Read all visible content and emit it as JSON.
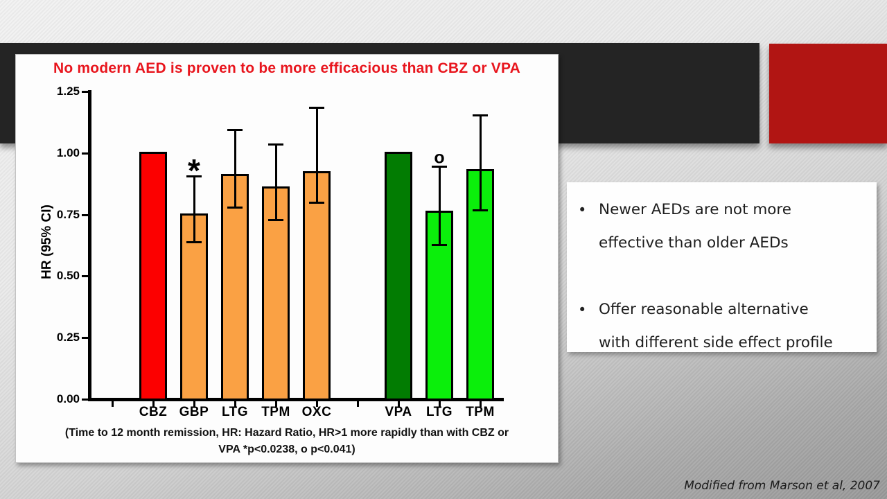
{
  "slide": {
    "accent_colors": {
      "dark_bar": "#242424",
      "red_block": "#b11513",
      "title_red": "#e8151d"
    }
  },
  "chart": {
    "title": "No modern AED is proven to be more efficacious than CBZ or VPA",
    "ylabel": "HR (95% CI)",
    "footnote_lines": [
      "(Time to 12 month remission, HR: Hazard Ratio, HR>1 more rapidly than with CBZ or",
      "VPA  *p<0.0238, o p<0.041)"
    ]
  },
  "chart_data": {
    "type": "bar",
    "title": "No modern AED is proven to be more efficacious than CBZ or VPA",
    "ylabel": "HR (95% CI)",
    "xlabel": "",
    "ylim": [
      0,
      1.25
    ],
    "yticks": [
      0.0,
      0.25,
      0.5,
      0.75,
      1.0,
      1.25
    ],
    "grid": false,
    "legend": false,
    "error_bars": "95% CI",
    "bars": [
      {
        "label": "CBZ",
        "value": 1.0,
        "ci_low": null,
        "ci_high": null,
        "color": "#fc0000",
        "group": "older-reference",
        "annotation": ""
      },
      {
        "label": "GBP",
        "value": 0.75,
        "ci_low": 0.63,
        "ci_high": 0.9,
        "color": "#faa144",
        "group": "newer-vs-CBZ",
        "annotation": "*"
      },
      {
        "label": "LTG",
        "value": 0.91,
        "ci_low": 0.77,
        "ci_high": 1.09,
        "color": "#faa144",
        "group": "newer-vs-CBZ",
        "annotation": ""
      },
      {
        "label": "TPM",
        "value": 0.86,
        "ci_low": 0.72,
        "ci_high": 1.03,
        "color": "#faa144",
        "group": "newer-vs-CBZ",
        "annotation": ""
      },
      {
        "label": "OXC",
        "value": 0.92,
        "ci_low": 0.79,
        "ci_high": 1.18,
        "color": "#faa144",
        "group": "newer-vs-CBZ",
        "annotation": ""
      },
      {
        "label": "VPA",
        "value": 1.0,
        "ci_low": null,
        "ci_high": null,
        "color": "#027c02",
        "group": "older-reference",
        "annotation": ""
      },
      {
        "label": "LTG",
        "value": 0.76,
        "ci_low": 0.62,
        "ci_high": 0.94,
        "color": "#0bef0b",
        "group": "newer-vs-VPA",
        "annotation": "o"
      },
      {
        "label": "TPM",
        "value": 0.93,
        "ci_low": 0.76,
        "ci_high": 1.15,
        "color": "#0bef0b",
        "group": "newer-vs-VPA",
        "annotation": ""
      }
    ]
  },
  "right_panel": {
    "bullet_char": "•",
    "bullets": [
      {
        "lines": [
          "Newer AEDs are not more",
          "effective than older AEDs"
        ]
      },
      {
        "lines": [
          "Offer reasonable alternative",
          "with different side effect profile"
        ]
      }
    ]
  },
  "citation": "Modified from Marson et al, 2007"
}
